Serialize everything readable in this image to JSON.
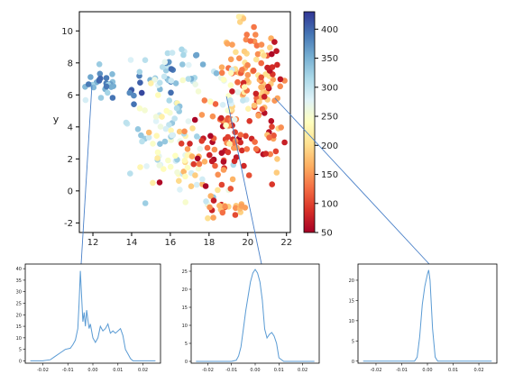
{
  "chart_data": [
    {
      "type": "scatter",
      "ylabel": "y",
      "xlim": [
        11.3,
        22.2
      ],
      "ylim": [
        -2.6,
        11.2
      ],
      "xticks": [
        "12",
        "14",
        "16",
        "18",
        "20",
        "22"
      ],
      "yticks": [
        "-2",
        "0",
        "2",
        "4",
        "6",
        "8",
        "10"
      ],
      "colormap": "RdYlBu",
      "colorbar": {
        "min": 50,
        "max": 430,
        "ticks": [
          "50",
          "100",
          "150",
          "200",
          "250",
          "300",
          "350",
          "400"
        ]
      },
      "clusters": [
        {
          "cx": 12.5,
          "cy": 6.8,
          "sx": 0.45,
          "sy": 0.55,
          "n": 24,
          "cmin": 320,
          "cmax": 400
        },
        {
          "cx": 14.2,
          "cy": 6.5,
          "sx": 0.3,
          "sy": 0.45,
          "n": 8,
          "cmin": 370,
          "cmax": 430
        },
        {
          "cx": 16.0,
          "cy": 7.3,
          "sx": 0.9,
          "sy": 0.8,
          "n": 40,
          "cmin": 260,
          "cmax": 400
        },
        {
          "cx": 15.8,
          "cy": 3.6,
          "sx": 1.2,
          "sy": 1.8,
          "n": 70,
          "cmin": 220,
          "cmax": 340
        },
        {
          "cx": 17.2,
          "cy": 1.2,
          "sx": 0.9,
          "sy": 1.2,
          "n": 35,
          "cmin": 160,
          "cmax": 300
        },
        {
          "cx": 18.5,
          "cy": 3.0,
          "sx": 0.9,
          "sy": 1.6,
          "n": 70,
          "cmin": 50,
          "cmax": 160
        },
        {
          "cx": 18.7,
          "cy": -1.2,
          "sx": 0.5,
          "sy": 0.4,
          "n": 18,
          "cmin": 90,
          "cmax": 210
        },
        {
          "cx": 19.9,
          "cy": 7.5,
          "sx": 0.8,
          "sy": 1.6,
          "n": 75,
          "cmin": 110,
          "cmax": 230
        },
        {
          "cx": 20.9,
          "cy": 4.4,
          "sx": 0.6,
          "sy": 1.8,
          "n": 45,
          "cmin": 60,
          "cmax": 200
        },
        {
          "cx": 21.2,
          "cy": 7.4,
          "sx": 0.3,
          "sy": 0.8,
          "n": 10,
          "cmin": 50,
          "cmax": 90
        },
        {
          "cx": 19.1,
          "cy": 6.2,
          "sx": 0.5,
          "sy": 1.0,
          "n": 18,
          "cmin": 230,
          "cmax": 300
        }
      ],
      "callouts": [
        {
          "from": [
            11.95,
            6.6
          ],
          "to_panel": 0
        },
        {
          "from": [
            18.9,
            5.9
          ],
          "to_panel": 1
        },
        {
          "from": [
            21.4,
            5.8
          ],
          "to_panel": 2
        }
      ]
    },
    {
      "type": "line",
      "xlim": [
        -0.027,
        0.027
      ],
      "ylim": [
        -1,
        42
      ],
      "xticks": [
        "-0.02",
        "-0.01",
        "0.00",
        "0.01",
        "0.02"
      ],
      "yticks": [
        "0",
        "5",
        "10",
        "15",
        "20",
        "25",
        "30",
        "35",
        "40"
      ],
      "x": [
        -0.025,
        -0.02,
        -0.017,
        -0.015,
        -0.013,
        -0.011,
        -0.009,
        -0.008,
        -0.007,
        -0.006,
        -0.0055,
        -0.005,
        -0.0045,
        -0.004,
        -0.0035,
        -0.003,
        -0.0025,
        -0.002,
        -0.0015,
        -0.001,
        0.0,
        0.001,
        0.002,
        0.003,
        0.004,
        0.005,
        0.006,
        0.007,
        0.008,
        0.009,
        0.01,
        0.011,
        0.012,
        0.013,
        0.014,
        0.015,
        0.016,
        0.018,
        0.025
      ],
      "y": [
        0,
        0,
        0.5,
        2,
        3.5,
        5,
        5.5,
        7,
        9,
        14,
        25,
        39,
        28,
        17,
        21,
        15,
        22,
        18,
        14,
        16,
        10,
        8,
        10,
        15,
        13,
        14,
        16,
        12,
        13,
        12,
        13,
        14,
        11,
        5,
        3,
        1,
        0,
        0,
        0
      ]
    },
    {
      "type": "line",
      "xlim": [
        -0.027,
        0.027
      ],
      "ylim": [
        -0.5,
        27
      ],
      "xticks": [
        "-0.02",
        "-0.01",
        "0.00",
        "0.01",
        "0.02"
      ],
      "yticks": [
        "0",
        "5",
        "10",
        "15",
        "20",
        "25"
      ],
      "x": [
        -0.025,
        -0.01,
        -0.008,
        -0.007,
        -0.006,
        -0.005,
        -0.004,
        -0.003,
        -0.002,
        -0.001,
        0.0,
        0.001,
        0.002,
        0.003,
        0.004,
        0.005,
        0.006,
        0.007,
        0.008,
        0.009,
        0.01,
        0.012,
        0.025
      ],
      "y": [
        0,
        0,
        0.3,
        1.5,
        4,
        9,
        14,
        18,
        22,
        24.5,
        25.5,
        24.5,
        22,
        17,
        9,
        6.5,
        7.5,
        8,
        7,
        5,
        1,
        0,
        0
      ]
    },
    {
      "type": "line",
      "xlim": [
        -0.027,
        0.027
      ],
      "ylim": [
        -0.5,
        24
      ],
      "xticks": [
        "-0.02",
        "-0.01",
        "0.00",
        "0.01",
        "0.02"
      ],
      "yticks": [
        "0",
        "5",
        "10",
        "15",
        "20"
      ],
      "x": [
        -0.025,
        -0.005,
        -0.004,
        -0.003,
        -0.002,
        -0.001,
        0.0,
        0.0005,
        0.001,
        0.002,
        0.003,
        0.004,
        0.025
      ],
      "y": [
        0,
        0,
        1,
        6,
        14,
        18.5,
        21.5,
        22.5,
        20,
        8,
        1,
        0,
        0
      ]
    }
  ]
}
